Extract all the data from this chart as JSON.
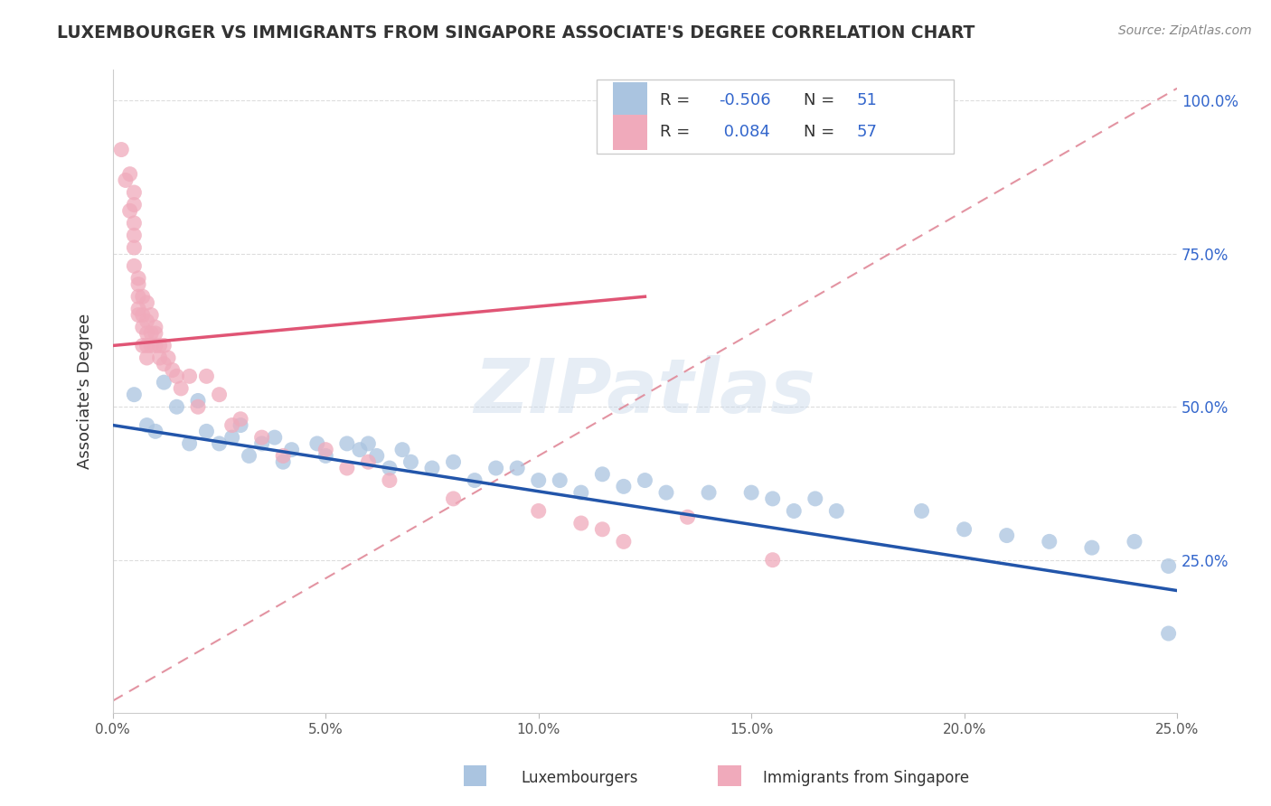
{
  "title": "LUXEMBOURGER VS IMMIGRANTS FROM SINGAPORE ASSOCIATE'S DEGREE CORRELATION CHART",
  "source": "Source: ZipAtlas.com",
  "ylabel": "Associate's Degree",
  "xlim": [
    0.0,
    0.25
  ],
  "ylim": [
    0.0,
    1.05
  ],
  "right_ytick_vals": [
    0.25,
    0.5,
    0.75,
    1.0
  ],
  "right_yticklabels": [
    "25.0%",
    "50.0%",
    "75.0%",
    "100.0%"
  ],
  "xtick_vals": [
    0.0,
    0.05,
    0.1,
    0.15,
    0.2,
    0.25
  ],
  "xticklabels": [
    "0.0%",
    "5.0%",
    "10.0%",
    "15.0%",
    "20.0%",
    "25.0%"
  ],
  "blue_color": "#aac4e0",
  "pink_color": "#f0aabb",
  "blue_line_color": "#2255aa",
  "pink_line_color": "#e05575",
  "diag_line_color": "#e08898",
  "legend_R_blue": "-0.506",
  "legend_N_blue": "51",
  "legend_R_pink": "0.084",
  "legend_N_pink": "57",
  "legend_label_blue": "Luxembourgers",
  "legend_label_pink": "Immigrants from Singapore",
  "blue_line_x0": 0.0,
  "blue_line_y0": 0.47,
  "blue_line_x1": 0.25,
  "blue_line_y1": 0.2,
  "pink_line_x0": 0.0,
  "pink_line_y0": 0.6,
  "pink_line_x1": 0.125,
  "pink_line_y1": 0.68,
  "blue_dots_x": [
    0.005,
    0.008,
    0.01,
    0.012,
    0.015,
    0.018,
    0.02,
    0.022,
    0.025,
    0.028,
    0.03,
    0.032,
    0.035,
    0.038,
    0.04,
    0.042,
    0.048,
    0.05,
    0.055,
    0.058,
    0.06,
    0.062,
    0.065,
    0.068,
    0.07,
    0.075,
    0.08,
    0.085,
    0.09,
    0.095,
    0.1,
    0.105,
    0.11,
    0.115,
    0.12,
    0.125,
    0.13,
    0.14,
    0.15,
    0.155,
    0.16,
    0.165,
    0.17,
    0.19,
    0.2,
    0.21,
    0.22,
    0.23,
    0.24,
    0.248,
    0.248
  ],
  "blue_dots_y": [
    0.52,
    0.47,
    0.46,
    0.54,
    0.5,
    0.44,
    0.51,
    0.46,
    0.44,
    0.45,
    0.47,
    0.42,
    0.44,
    0.45,
    0.41,
    0.43,
    0.44,
    0.42,
    0.44,
    0.43,
    0.44,
    0.42,
    0.4,
    0.43,
    0.41,
    0.4,
    0.41,
    0.38,
    0.4,
    0.4,
    0.38,
    0.38,
    0.36,
    0.39,
    0.37,
    0.38,
    0.36,
    0.36,
    0.36,
    0.35,
    0.33,
    0.35,
    0.33,
    0.33,
    0.3,
    0.29,
    0.28,
    0.27,
    0.28,
    0.24,
    0.13
  ],
  "pink_dots_x": [
    0.002,
    0.003,
    0.004,
    0.004,
    0.005,
    0.005,
    0.005,
    0.005,
    0.005,
    0.005,
    0.006,
    0.006,
    0.006,
    0.006,
    0.006,
    0.007,
    0.007,
    0.007,
    0.007,
    0.008,
    0.008,
    0.008,
    0.008,
    0.008,
    0.009,
    0.009,
    0.009,
    0.01,
    0.01,
    0.01,
    0.011,
    0.011,
    0.012,
    0.012,
    0.013,
    0.014,
    0.015,
    0.016,
    0.018,
    0.02,
    0.022,
    0.025,
    0.028,
    0.03,
    0.035,
    0.04,
    0.05,
    0.055,
    0.06,
    0.065,
    0.08,
    0.1,
    0.11,
    0.115,
    0.12,
    0.135,
    0.155
  ],
  "pink_dots_y": [
    0.92,
    0.87,
    0.88,
    0.82,
    0.85,
    0.83,
    0.8,
    0.78,
    0.76,
    0.73,
    0.71,
    0.7,
    0.68,
    0.66,
    0.65,
    0.68,
    0.65,
    0.63,
    0.6,
    0.67,
    0.64,
    0.62,
    0.6,
    0.58,
    0.65,
    0.62,
    0.6,
    0.63,
    0.62,
    0.6,
    0.6,
    0.58,
    0.6,
    0.57,
    0.58,
    0.56,
    0.55,
    0.53,
    0.55,
    0.5,
    0.55,
    0.52,
    0.47,
    0.48,
    0.45,
    0.42,
    0.43,
    0.4,
    0.41,
    0.38,
    0.35,
    0.33,
    0.31,
    0.3,
    0.28,
    0.32,
    0.25
  ],
  "background_color": "#ffffff",
  "grid_color": "#dddddd",
  "watermark_text": "ZIPatlas",
  "title_color": "#333333",
  "R_value_color": "#3366cc",
  "N_value_color": "#3366cc"
}
